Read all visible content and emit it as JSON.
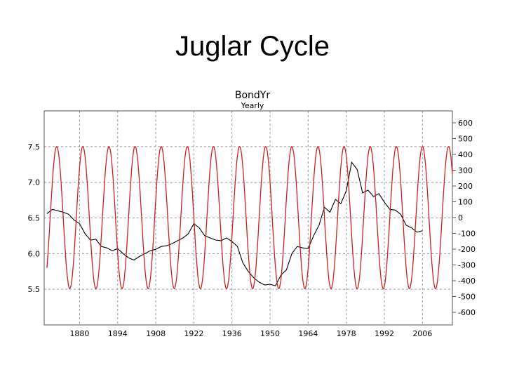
{
  "slide": {
    "title": "Juglar Cycle"
  },
  "chart_data": {
    "type": "line",
    "title": "BondYr",
    "subtitle": "Yearly",
    "x_tick_labels": [
      "1880",
      "1894",
      "1908",
      "1922",
      "1936",
      "1950",
      "1964",
      "1978",
      "1992",
      "2006"
    ],
    "x_tick_years": [
      1880,
      1894,
      1908,
      1922,
      1936,
      1950,
      1964,
      1978,
      1992,
      2006
    ],
    "xlim": [
      1867,
      2017
    ],
    "left_axis": {
      "ticks": [
        "7.5",
        "7.0",
        "6.5",
        "6.0",
        "5.5"
      ],
      "tick_values": [
        7.5,
        7.0,
        6.5,
        6.0,
        5.5
      ],
      "ylim": [
        5.0,
        8.0
      ]
    },
    "right_axis": {
      "ticks": [
        "600",
        "500",
        "400",
        "300",
        "200",
        "100",
        "0",
        "-100",
        "-200",
        "-300",
        "-400",
        "-500",
        "-600"
      ],
      "tick_values": [
        600,
        500,
        400,
        300,
        200,
        100,
        0,
        -100,
        -200,
        -300,
        -400,
        -500,
        -600
      ]
    },
    "grid": true,
    "series": [
      {
        "axis": "left",
        "color": "#000000",
        "points": [
          [
            1868,
            6.56
          ],
          [
            1870,
            6.62
          ],
          [
            1872,
            6.6
          ],
          [
            1874,
            6.58
          ],
          [
            1876,
            6.55
          ],
          [
            1878,
            6.47
          ],
          [
            1880,
            6.42
          ],
          [
            1882,
            6.28
          ],
          [
            1884,
            6.19
          ],
          [
            1886,
            6.2
          ],
          [
            1888,
            6.1
          ],
          [
            1890,
            6.08
          ],
          [
            1892,
            6.04
          ],
          [
            1894,
            6.07
          ],
          [
            1896,
            6.0
          ],
          [
            1898,
            5.94
          ],
          [
            1900,
            5.91
          ],
          [
            1902,
            5.96
          ],
          [
            1904,
            6.0
          ],
          [
            1906,
            6.04
          ],
          [
            1908,
            6.06
          ],
          [
            1910,
            6.1
          ],
          [
            1912,
            6.11
          ],
          [
            1914,
            6.14
          ],
          [
            1916,
            6.18
          ],
          [
            1918,
            6.22
          ],
          [
            1920,
            6.28
          ],
          [
            1922,
            6.42
          ],
          [
            1924,
            6.36
          ],
          [
            1926,
            6.25
          ],
          [
            1928,
            6.22
          ],
          [
            1930,
            6.19
          ],
          [
            1932,
            6.18
          ],
          [
            1934,
            6.22
          ],
          [
            1936,
            6.17
          ],
          [
            1938,
            6.1
          ],
          [
            1940,
            5.87
          ],
          [
            1942,
            5.75
          ],
          [
            1944,
            5.66
          ],
          [
            1946,
            5.6
          ],
          [
            1948,
            5.56
          ],
          [
            1950,
            5.57
          ],
          [
            1952,
            5.55
          ],
          [
            1954,
            5.7
          ],
          [
            1956,
            5.77
          ],
          [
            1958,
            6.0
          ],
          [
            1960,
            6.1
          ],
          [
            1962,
            6.08
          ],
          [
            1964,
            6.07
          ],
          [
            1966,
            6.25
          ],
          [
            1968,
            6.4
          ],
          [
            1970,
            6.65
          ],
          [
            1972,
            6.58
          ],
          [
            1974,
            6.76
          ],
          [
            1976,
            6.7
          ],
          [
            1978,
            6.88
          ],
          [
            1980,
            7.28
          ],
          [
            1982,
            7.18
          ],
          [
            1984,
            6.85
          ],
          [
            1986,
            6.89
          ],
          [
            1988,
            6.8
          ],
          [
            1990,
            6.84
          ],
          [
            1992,
            6.72
          ],
          [
            1994,
            6.62
          ],
          [
            1996,
            6.61
          ],
          [
            1998,
            6.55
          ],
          [
            2000,
            6.4
          ],
          [
            2002,
            6.36
          ],
          [
            2004,
            6.3
          ],
          [
            2006,
            6.32
          ]
        ]
      },
      {
        "axis": "right",
        "color": "#cc2222",
        "waveform": "sinusoid",
        "amplitude": 450,
        "period_years": 9.6,
        "peak_years": [
          1871.6,
          1881.2,
          1890.8,
          1900.4,
          1910.0,
          1919.6,
          1929.2,
          1938.8,
          1948.4,
          1958.0,
          1967.6,
          1977.2,
          1986.8,
          1996.4,
          2006.0
        ],
        "x_range": [
          1868,
          2017
        ]
      }
    ]
  }
}
